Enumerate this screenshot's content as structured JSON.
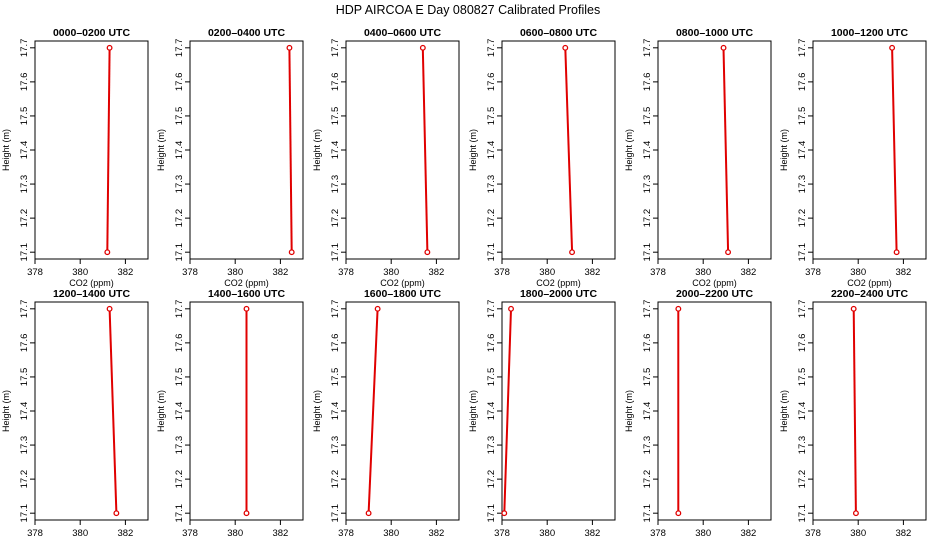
{
  "figure": {
    "title": "HDP AIRCOA E  Day 080827  Calibrated Profiles"
  },
  "colors": {
    "line": "#e00000",
    "marker": "#e00000",
    "axes": "#000000"
  },
  "chart_data": [
    {
      "type": "line",
      "title": "0000–0200 UTC",
      "xlabel": "CO2 (ppm)",
      "ylabel": "Height (m)",
      "xlim": [
        378,
        383
      ],
      "ylim": [
        17.08,
        17.72
      ],
      "xticks": [
        "378",
        "380",
        "382"
      ],
      "yticks": [
        "17.1",
        "17.2",
        "17.3",
        "17.4",
        "17.5",
        "17.6",
        "17.7"
      ],
      "x": [
        381.2,
        381.3
      ],
      "y": [
        17.1,
        17.7
      ]
    },
    {
      "type": "line",
      "title": "0200–0400 UTC",
      "xlabel": "CO2 (ppm)",
      "ylabel": "Height (m)",
      "xlim": [
        378,
        383
      ],
      "ylim": [
        17.08,
        17.72
      ],
      "xticks": [
        "378",
        "380",
        "382"
      ],
      "yticks": [
        "17.1",
        "17.2",
        "17.3",
        "17.4",
        "17.5",
        "17.6",
        "17.7"
      ],
      "x": [
        382.5,
        382.4
      ],
      "y": [
        17.1,
        17.7
      ]
    },
    {
      "type": "line",
      "title": "0400–0600 UTC",
      "xlabel": "CO2 (ppm)",
      "ylabel": "Height (m)",
      "xlim": [
        378,
        383
      ],
      "ylim": [
        17.08,
        17.72
      ],
      "xticks": [
        "378",
        "380",
        "382"
      ],
      "yticks": [
        "17.1",
        "17.2",
        "17.3",
        "17.4",
        "17.5",
        "17.6",
        "17.7"
      ],
      "x": [
        381.6,
        381.4
      ],
      "y": [
        17.1,
        17.7
      ]
    },
    {
      "type": "line",
      "title": "0600–0800 UTC",
      "xlabel": "CO2 (ppm)",
      "ylabel": "Height (m)",
      "xlim": [
        378,
        383
      ],
      "ylim": [
        17.08,
        17.72
      ],
      "xticks": [
        "378",
        "380",
        "382"
      ],
      "yticks": [
        "17.1",
        "17.2",
        "17.3",
        "17.4",
        "17.5",
        "17.6",
        "17.7"
      ],
      "x": [
        381.1,
        380.8
      ],
      "y": [
        17.1,
        17.7
      ]
    },
    {
      "type": "line",
      "title": "0800–1000 UTC",
      "xlabel": "CO2 (ppm)",
      "ylabel": "Height (m)",
      "xlim": [
        378,
        383
      ],
      "ylim": [
        17.08,
        17.72
      ],
      "xticks": [
        "378",
        "380",
        "382"
      ],
      "yticks": [
        "17.1",
        "17.2",
        "17.3",
        "17.4",
        "17.5",
        "17.6",
        "17.7"
      ],
      "x": [
        381.1,
        380.9
      ],
      "y": [
        17.1,
        17.7
      ]
    },
    {
      "type": "line",
      "title": "1000–1200 UTC",
      "xlabel": "CO2 (ppm)",
      "ylabel": "Height (m)",
      "xlim": [
        378,
        383
      ],
      "ylim": [
        17.08,
        17.72
      ],
      "xticks": [
        "378",
        "380",
        "382"
      ],
      "yticks": [
        "17.1",
        "17.2",
        "17.3",
        "17.4",
        "17.5",
        "17.6",
        "17.7"
      ],
      "x": [
        381.7,
        381.5
      ],
      "y": [
        17.1,
        17.7
      ]
    },
    {
      "type": "line",
      "title": "1200–1400 UTC",
      "xlabel": "CO2 (ppm)",
      "ylabel": "Height (m)",
      "xlim": [
        378,
        383
      ],
      "ylim": [
        17.08,
        17.72
      ],
      "xticks": [
        "378",
        "380",
        "382"
      ],
      "yticks": [
        "17.1",
        "17.2",
        "17.3",
        "17.4",
        "17.5",
        "17.6",
        "17.7"
      ],
      "x": [
        381.6,
        381.3
      ],
      "y": [
        17.1,
        17.7
      ]
    },
    {
      "type": "line",
      "title": "1400–1600 UTC",
      "xlabel": "CO2 (ppm)",
      "ylabel": "Height (m)",
      "xlim": [
        378,
        383
      ],
      "ylim": [
        17.08,
        17.72
      ],
      "xticks": [
        "378",
        "380",
        "382"
      ],
      "yticks": [
        "17.1",
        "17.2",
        "17.3",
        "17.4",
        "17.5",
        "17.6",
        "17.7"
      ],
      "x": [
        380.5,
        380.5
      ],
      "y": [
        17.1,
        17.7
      ]
    },
    {
      "type": "line",
      "title": "1600–1800 UTC",
      "xlabel": "CO2 (ppm)",
      "ylabel": "Height (m)",
      "xlim": [
        378,
        383
      ],
      "ylim": [
        17.08,
        17.72
      ],
      "xticks": [
        "378",
        "380",
        "382"
      ],
      "yticks": [
        "17.1",
        "17.2",
        "17.3",
        "17.4",
        "17.5",
        "17.6",
        "17.7"
      ],
      "x": [
        379.0,
        379.4
      ],
      "y": [
        17.1,
        17.7
      ]
    },
    {
      "type": "line",
      "title": "1800–2000 UTC",
      "xlabel": "CO2 (ppm)",
      "ylabel": "Height (m)",
      "xlim": [
        378,
        383
      ],
      "ylim": [
        17.08,
        17.72
      ],
      "xticks": [
        "378",
        "380",
        "382"
      ],
      "yticks": [
        "17.1",
        "17.2",
        "17.3",
        "17.4",
        "17.5",
        "17.6",
        "17.7"
      ],
      "x": [
        378.1,
        378.4
      ],
      "y": [
        17.1,
        17.7
      ]
    },
    {
      "type": "line",
      "title": "2000–2200 UTC",
      "xlabel": "CO2 (ppm)",
      "ylabel": "Height (m)",
      "xlim": [
        378,
        383
      ],
      "ylim": [
        17.08,
        17.72
      ],
      "xticks": [
        "378",
        "380",
        "382"
      ],
      "yticks": [
        "17.1",
        "17.2",
        "17.3",
        "17.4",
        "17.5",
        "17.6",
        "17.7"
      ],
      "x": [
        378.9,
        378.9
      ],
      "y": [
        17.1,
        17.7
      ]
    },
    {
      "type": "line",
      "title": "2200–2400 UTC",
      "xlabel": "CO2 (ppm)",
      "ylabel": "Height (m)",
      "xlim": [
        378,
        383
      ],
      "ylim": [
        17.08,
        17.72
      ],
      "xticks": [
        "378",
        "380",
        "382"
      ],
      "yticks": [
        "17.1",
        "17.2",
        "17.3",
        "17.4",
        "17.5",
        "17.6",
        "17.7"
      ],
      "x": [
        379.9,
        379.8
      ],
      "y": [
        17.1,
        17.7
      ]
    }
  ]
}
